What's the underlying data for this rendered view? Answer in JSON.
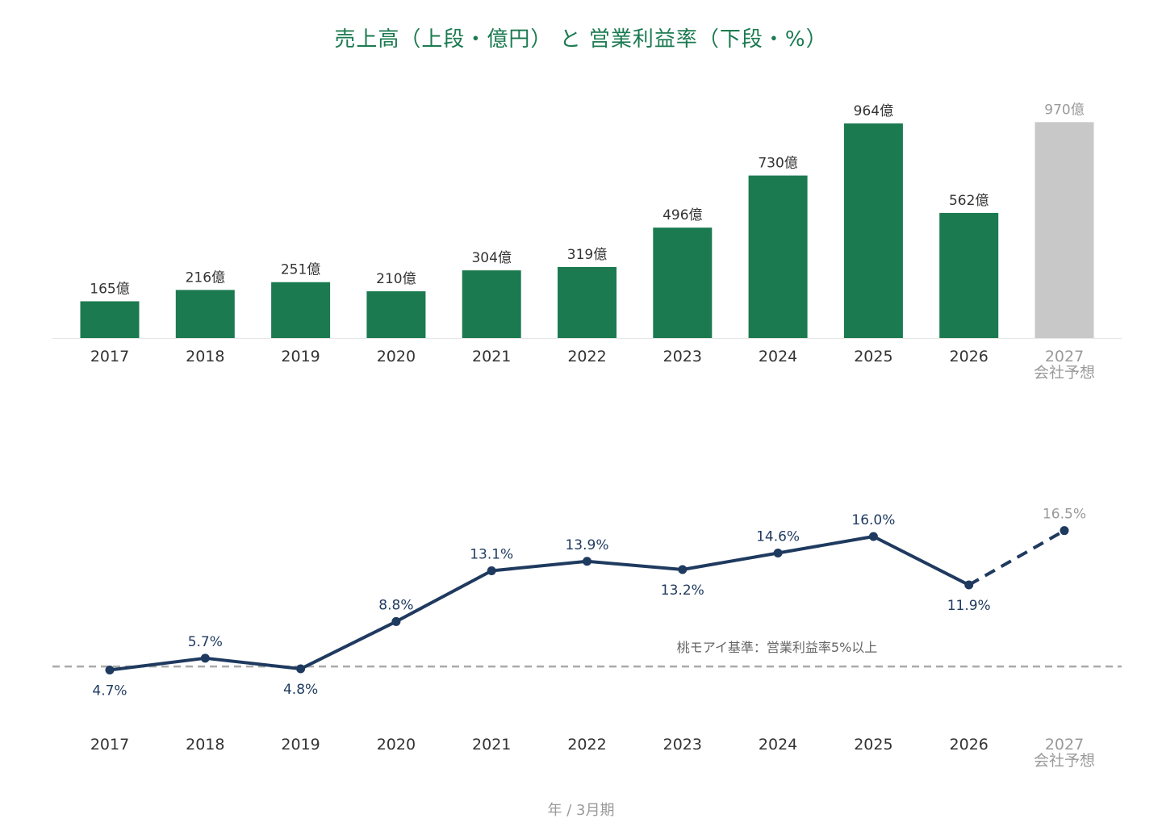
{
  "title": "売上高（上段・億円） と 営業利益率（下段・%）",
  "footer": "年 / 3月期",
  "colors": {
    "bar": "#1b7a50",
    "bar_forecast": "#c8c8c8",
    "line": "#1f3a5f",
    "reference": "#aaaaaa",
    "forecast_text": "#9a9a9a"
  },
  "chart_data": [
    {
      "type": "bar",
      "title": "売上高（上段・億円）",
      "categories": [
        "2017",
        "2018",
        "2019",
        "2020",
        "2021",
        "2022",
        "2023",
        "2024",
        "2025",
        "2026",
        "2027"
      ],
      "forecast_note": "会社予想",
      "values": [
        165,
        216,
        251,
        210,
        304,
        319,
        496,
        730,
        964,
        562,
        970
      ],
      "value_labels": [
        "165億",
        "216億",
        "251億",
        "210億",
        "304億",
        "319億",
        "496億",
        "730億",
        "964億",
        "562億",
        "970億"
      ],
      "forecast_index": 10,
      "grid": false
    },
    {
      "type": "line",
      "title": "営業利益率（下段・%）",
      "categories": [
        "2017",
        "2018",
        "2019",
        "2020",
        "2021",
        "2022",
        "2023",
        "2024",
        "2025",
        "2026",
        "2027"
      ],
      "forecast_note": "会社予想",
      "values": [
        4.7,
        5.7,
        4.8,
        8.8,
        13.1,
        13.9,
        13.2,
        14.6,
        16.0,
        11.9,
        16.5
      ],
      "value_labels": [
        "4.7%",
        "5.7%",
        "4.8%",
        "8.8%",
        "13.1%",
        "13.9%",
        "13.2%",
        "14.6%",
        "16.0%",
        "11.9%",
        "16.5%"
      ],
      "label_positions": [
        "below",
        "above",
        "below",
        "above",
        "above",
        "above",
        "below",
        "above",
        "above",
        "below",
        "above"
      ],
      "forecast_index": 10,
      "reference_line": {
        "value": 5,
        "label": "桃モアイ基準：営業利益率5%以上"
      },
      "grid": false
    }
  ]
}
